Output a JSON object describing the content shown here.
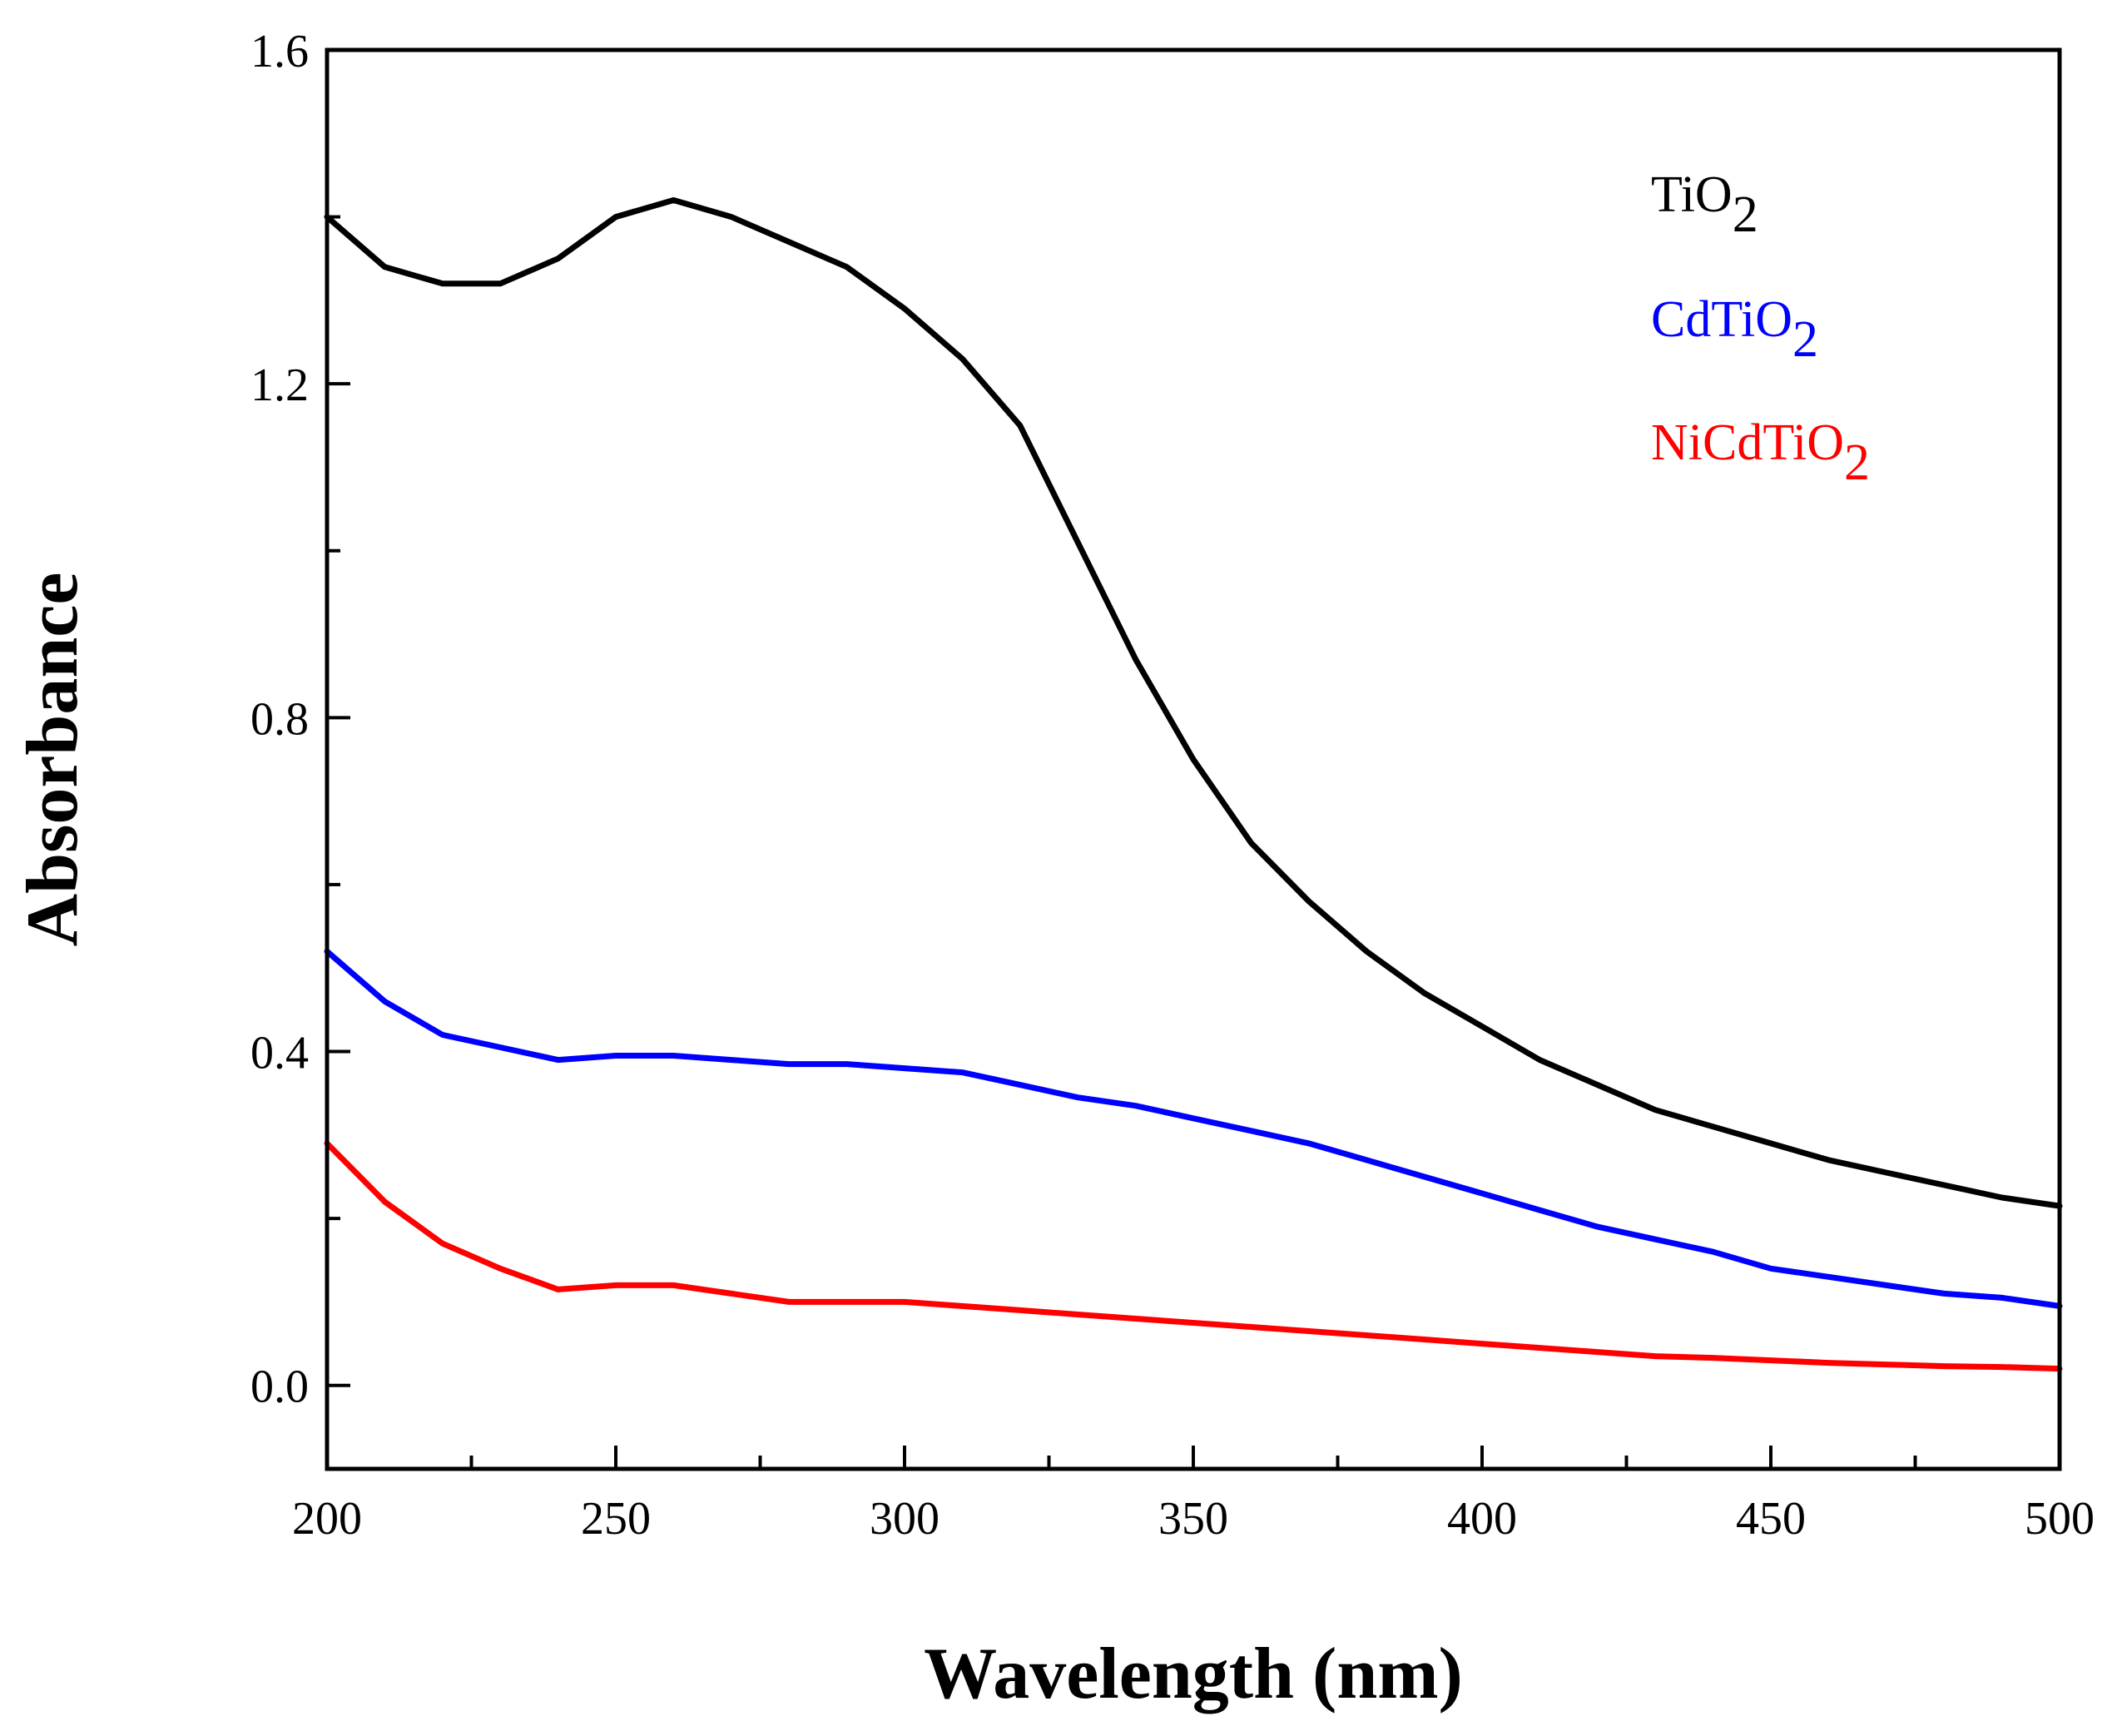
{
  "chart_data": {
    "type": "line",
    "title": "",
    "xlabel": "Wavelength (nm)",
    "ylabel": "Absorbance",
    "xlim": [
      200,
      500
    ],
    "ylim": [
      -0.1,
      1.6
    ],
    "x_ticks": [
      200,
      250,
      300,
      350,
      400,
      450,
      500
    ],
    "x_tick_labels": [
      "200",
      "250",
      "300",
      "350",
      "400",
      "450",
      "500"
    ],
    "x_minor_ticks": [
      225,
      275,
      325,
      375,
      425,
      475
    ],
    "y_ticks": [
      0.0,
      0.4,
      0.8,
      1.2,
      1.6
    ],
    "y_tick_labels": [
      "0.0",
      "0.4",
      "0.8",
      "1.2",
      "1.6"
    ],
    "y_minor_ticks": [
      0.2,
      0.6,
      1.0,
      1.4
    ],
    "grid": false,
    "legend_position": "top-right",
    "x": [
      200,
      210,
      220,
      230,
      240,
      250,
      260,
      270,
      280,
      290,
      300,
      310,
      320,
      330,
      340,
      350,
      360,
      370,
      380,
      390,
      400,
      410,
      420,
      430,
      440,
      450,
      460,
      470,
      480,
      490,
      500
    ],
    "series": [
      {
        "name": "TiO2",
        "label_main": "TiO",
        "label_sub": "2",
        "color": "#000000",
        "values": [
          1.4,
          1.34,
          1.32,
          1.32,
          1.35,
          1.4,
          1.42,
          1.4,
          1.37,
          1.34,
          1.29,
          1.23,
          1.15,
          1.01,
          0.87,
          0.75,
          0.65,
          0.58,
          0.52,
          0.47,
          0.43,
          0.39,
          0.36,
          0.33,
          0.31,
          0.29,
          0.27,
          0.255,
          0.24,
          0.225,
          0.215
        ]
      },
      {
        "name": "CdTiO2",
        "label_main": "CdTiO",
        "label_sub": "2",
        "color": "#0000ff",
        "values": [
          0.52,
          0.46,
          0.42,
          0.405,
          0.39,
          0.395,
          0.395,
          0.39,
          0.385,
          0.385,
          0.38,
          0.375,
          0.36,
          0.345,
          0.335,
          0.32,
          0.305,
          0.29,
          0.27,
          0.25,
          0.23,
          0.21,
          0.19,
          0.175,
          0.16,
          0.14,
          0.13,
          0.12,
          0.11,
          0.105,
          0.095
        ]
      },
      {
        "name": "NiCdTiO2",
        "label_main": "NiCdTiO",
        "label_sub": "2",
        "color": "#ff0000",
        "values": [
          0.29,
          0.22,
          0.17,
          0.14,
          0.115,
          0.12,
          0.12,
          0.11,
          0.1,
          0.1,
          0.1,
          0.095,
          0.09,
          0.085,
          0.08,
          0.075,
          0.07,
          0.065,
          0.06,
          0.055,
          0.05,
          0.045,
          0.04,
          0.035,
          0.033,
          0.03,
          0.027,
          0.025,
          0.023,
          0.022,
          0.02
        ]
      }
    ]
  }
}
